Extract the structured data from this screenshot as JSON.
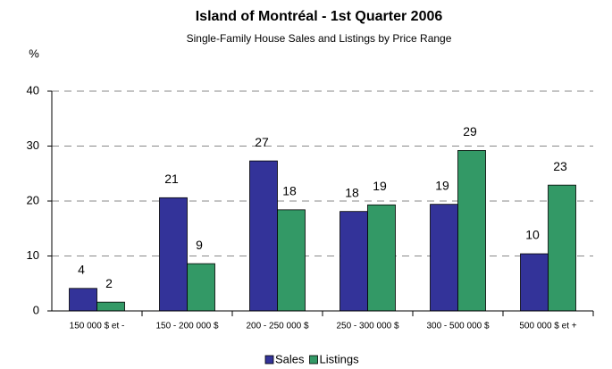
{
  "chart_data": {
    "type": "bar",
    "title": "Island of Montréal - 1st Quarter 2006",
    "subtitle": "Single-Family House Sales and Listings by Price Range",
    "y_label": "%",
    "categories": [
      "150 000 $ et -",
      "150 - 200 000 $",
      "200 - 250 000 $",
      "250 - 300 000 $",
      "300 - 500 000 $",
      "500 000 $ et +"
    ],
    "series": [
      {
        "name": "Sales",
        "color": "#333399",
        "values": [
          4.1,
          20.6,
          27.3,
          18.1,
          19.4,
          10.4
        ],
        "value_labels": [
          "4",
          "21",
          "27",
          "18",
          "19",
          "10"
        ]
      },
      {
        "name": "Listings",
        "color": "#339966",
        "values": [
          1.6,
          8.6,
          18.4,
          19.3,
          29.2,
          22.9
        ],
        "value_labels": [
          "2",
          "9",
          "18",
          "19",
          "29",
          "23"
        ]
      }
    ],
    "ylim": [
      0,
      40
    ],
    "yticks": [
      0,
      10,
      20,
      30,
      40
    ],
    "grid": true,
    "legend": "bottom"
  }
}
